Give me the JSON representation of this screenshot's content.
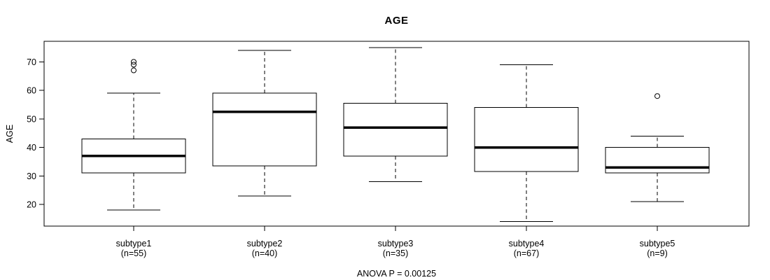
{
  "chart_data": {
    "type": "boxplot",
    "title": "AGE",
    "ylabel": "AGE",
    "xlabel": "",
    "footnote": "ANOVA P = 0.00125",
    "ylim": [
      12.4,
      77.2
    ],
    "yticks": [
      20,
      30,
      40,
      50,
      60,
      70
    ],
    "grid": false,
    "legend": "none",
    "colors": {
      "line": "#000000",
      "box_fill": "#ffffff",
      "background": "#ffffff"
    },
    "groups": [
      {
        "label": "subtype1",
        "sublabel": "(n=55)",
        "n": 55,
        "whisker_low": 18,
        "q1": 31,
        "median": 37,
        "q3": 43,
        "whisker_high": 59,
        "outliers": [
          67,
          69,
          70
        ]
      },
      {
        "label": "subtype2",
        "sublabel": "(n=40)",
        "n": 40,
        "whisker_low": 23,
        "q1": 33.5,
        "median": 52.5,
        "q3": 59,
        "whisker_high": 74,
        "outliers": []
      },
      {
        "label": "subtype3",
        "sublabel": "(n=35)",
        "n": 35,
        "whisker_low": 28,
        "q1": 37,
        "median": 47,
        "q3": 55.5,
        "whisker_high": 75,
        "outliers": []
      },
      {
        "label": "subtype4",
        "sublabel": "(n=67)",
        "n": 67,
        "whisker_low": 14,
        "q1": 31.5,
        "median": 40,
        "q3": 54,
        "whisker_high": 69,
        "outliers": []
      },
      {
        "label": "subtype5",
        "sublabel": "(n=9)",
        "n": 9,
        "whisker_low": 21,
        "q1": 31,
        "median": 33,
        "q3": 40,
        "whisker_high": 44,
        "outliers": [
          58
        ]
      }
    ]
  }
}
